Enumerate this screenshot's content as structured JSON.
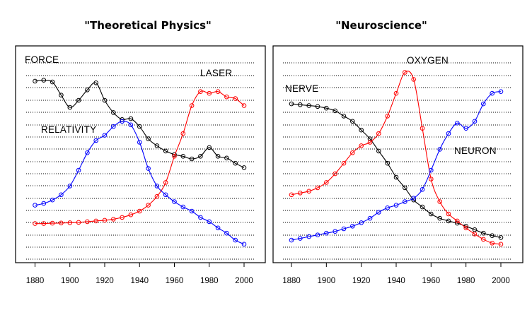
{
  "chart_data": [
    {
      "type": "line",
      "title": "\"Theoretical Physics\"",
      "x": [
        1880,
        1885,
        1890,
        1895,
        1900,
        1905,
        1910,
        1915,
        1920,
        1925,
        1930,
        1935,
        1940,
        1945,
        1950,
        1955,
        1960,
        1965,
        1970,
        1975,
        1980,
        1985,
        1990,
        1995,
        2000
      ],
      "xlim": [
        1875,
        2005
      ],
      "x_ticks": [
        1880,
        1900,
        1920,
        1940,
        1960,
        1980,
        2000
      ],
      "ylim": [
        0,
        100
      ],
      "grid": "horizontal-dotted",
      "series": [
        {
          "name": "FORCE",
          "color": "#000000",
          "values": [
            95,
            95.5,
            94.5,
            87,
            80,
            84,
            90,
            94,
            84,
            77,
            73,
            73.5,
            69,
            62,
            58,
            55,
            53,
            52,
            50.5,
            52,
            57,
            52,
            51,
            48,
            45.5
          ]
        },
        {
          "name": "LASER",
          "color": "#ff0000",
          "values": [
            13.5,
            13.5,
            13.7,
            13.8,
            14,
            14.2,
            14.6,
            15,
            15.4,
            16,
            17,
            18.5,
            20.6,
            24,
            29,
            37,
            52,
            65,
            81,
            89,
            88,
            89,
            86,
            85,
            81
          ]
        },
        {
          "name": "RELATIVITY",
          "color": "#0000ff",
          "values": [
            24,
            25,
            27,
            30,
            35,
            44,
            54,
            61,
            64,
            69,
            72,
            70,
            60,
            45,
            35,
            30,
            26,
            23,
            20.6,
            17,
            14.6,
            11,
            8,
            4,
            1.7
          ]
        }
      ]
    },
    {
      "type": "line",
      "title": "\"Neuroscience\"",
      "x": [
        1880,
        1885,
        1890,
        1895,
        1900,
        1905,
        1910,
        1915,
        1920,
        1925,
        1930,
        1935,
        1940,
        1945,
        1950,
        1955,
        1960,
        1965,
        1970,
        1975,
        1980,
        1985,
        1990,
        1995,
        2000
      ],
      "xlim": [
        1875,
        2005
      ],
      "x_ticks": [
        1880,
        1900,
        1920,
        1940,
        1960,
        1980,
        2000
      ],
      "ylim": [
        0,
        100
      ],
      "grid": "horizontal-dotted",
      "series": [
        {
          "name": "NERVE",
          "color": "#000000",
          "values": [
            82,
            81.5,
            81,
            80.5,
            79.5,
            78,
            75,
            72,
            67,
            62,
            55,
            48,
            40,
            34,
            27,
            23,
            19,
            16.5,
            15,
            13.7,
            12,
            10,
            8,
            6.6,
            5.5
          ]
        },
        {
          "name": "OXYGEN",
          "color": "#ff0000",
          "values": [
            30,
            31,
            32,
            34,
            37,
            42,
            48,
            54,
            58,
            60,
            65,
            75,
            88,
            100,
            96,
            68,
            39,
            26,
            19,
            15,
            11,
            7.5,
            4.5,
            2.3,
            1.7
          ]
        },
        {
          "name": "NEURON",
          "color": "#0000ff",
          "values": [
            4,
            5,
            6,
            7,
            8,
            9,
            10.5,
            12,
            14,
            16.5,
            20,
            22.5,
            24,
            26,
            28,
            33,
            44,
            56,
            65,
            71,
            68,
            72,
            82,
            88,
            89
          ]
        }
      ]
    }
  ]
}
